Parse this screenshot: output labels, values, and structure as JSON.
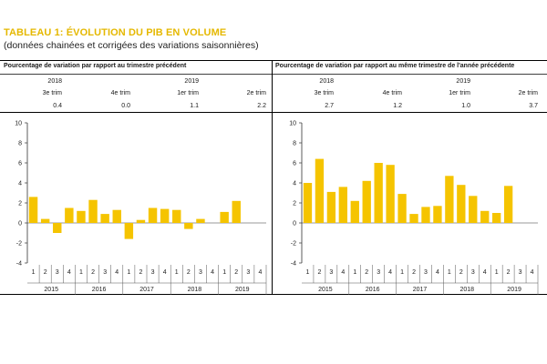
{
  "title": "TABLEAU 1: ÉVOLUTION DU PIB EN VOLUME",
  "subtitle": "(données chainées et corrigées des variations saisonnières)",
  "colors": {
    "bar": "#f5c400",
    "title": "#e5b800",
    "axis": "#333333",
    "grid": "#000000"
  },
  "panels": [
    {
      "header": "Pourcentage de variation par rapport au trimestre précédent",
      "summary": {
        "years": [
          "2018",
          "2019"
        ],
        "quarters": [
          "3e trim",
          "4e trim",
          "1er trim",
          "2e trim"
        ],
        "values": [
          "0.4",
          "0.0",
          "1.1",
          "2.2"
        ]
      }
    },
    {
      "header": "Pourcentage de variation par rapport au même trimestre de l'année précédente",
      "summary": {
        "years": [
          "2018",
          "2019"
        ],
        "quarters": [
          "3e trim",
          "4e trim",
          "1er trim",
          "2e trim"
        ],
        "values": [
          "2.7",
          "1.2",
          "1.0",
          "3.7"
        ]
      }
    }
  ],
  "chart_data": [
    {
      "type": "bar",
      "years": [
        "2015",
        "2016",
        "2017",
        "2018",
        "2019"
      ],
      "quarter_labels": [
        "1",
        "2",
        "3",
        "4"
      ],
      "categories": [
        "2015 T1",
        "2015 T2",
        "2015 T3",
        "2015 T4",
        "2016 T1",
        "2016 T2",
        "2016 T3",
        "2016 T4",
        "2017 T1",
        "2017 T2",
        "2017 T3",
        "2017 T4",
        "2018 T1",
        "2018 T2",
        "2018 T3",
        "2018 T4",
        "2019 T1",
        "2019 T2",
        "2019 T3",
        "2019 T4"
      ],
      "values": [
        2.6,
        0.4,
        -1.0,
        1.5,
        1.2,
        2.3,
        0.9,
        1.3,
        -1.6,
        0.3,
        1.5,
        1.4,
        1.3,
        -0.6,
        0.4,
        0.0,
        1.1,
        2.2,
        null,
        null
      ],
      "ylim": [
        -4,
        10
      ],
      "yticks": [
        "10",
        "8",
        "6",
        "4",
        "2",
        "0",
        "-2",
        "-4"
      ],
      "grid": false
    },
    {
      "type": "bar",
      "years": [
        "2015",
        "2016",
        "2017",
        "2018",
        "2019"
      ],
      "quarter_labels": [
        "1",
        "2",
        "3",
        "4"
      ],
      "categories": [
        "2015 T1",
        "2015 T2",
        "2015 T3",
        "2015 T4",
        "2016 T1",
        "2016 T2",
        "2016 T3",
        "2016 T4",
        "2017 T1",
        "2017 T2",
        "2017 T3",
        "2017 T4",
        "2018 T1",
        "2018 T2",
        "2018 T3",
        "2018 T4",
        "2019 T1",
        "2019 T2",
        "2019 T3",
        "2019 T4"
      ],
      "values": [
        4.0,
        6.4,
        3.1,
        3.6,
        2.2,
        4.2,
        6.0,
        5.8,
        2.9,
        0.9,
        1.6,
        1.7,
        4.7,
        3.8,
        2.7,
        1.2,
        1.0,
        3.7,
        null,
        null
      ],
      "ylim": [
        -4,
        10
      ],
      "yticks": [
        "10",
        "8",
        "6",
        "4",
        "2",
        "0",
        "-2",
        "-4"
      ],
      "grid": false
    }
  ]
}
